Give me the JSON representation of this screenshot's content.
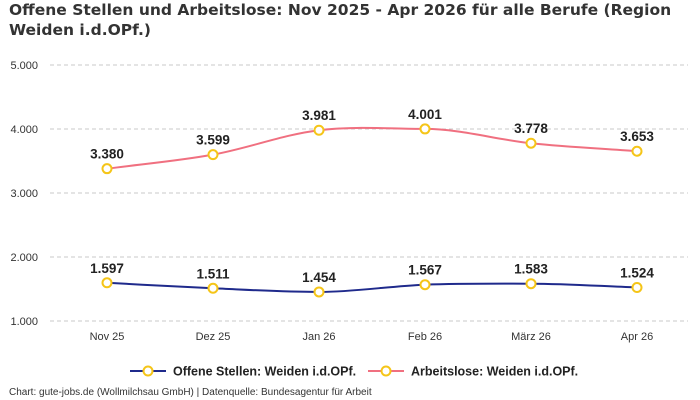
{
  "title": "Offene Stellen und Arbeitslose: Nov 2025 - Apr 2026 für alle Berufe (Region Weiden i.d.OPf.)",
  "footer": "Chart: gute-jobs.de (Wollmilchsau GmbH) | Datenquelle: Bundesagentur für Arbeit",
  "chart_data": {
    "type": "line",
    "title": "Offene Stellen und Arbeitslose: Nov 2025 - Apr 2026 für alle Berufe (Region Weiden i.d.OPf.)",
    "xlabel": "",
    "ylabel": "",
    "categories": [
      "Nov 25",
      "Dez 25",
      "Jan 26",
      "Feb 26",
      "März 26",
      "Apr 26"
    ],
    "ylim": [
      1000,
      5000
    ],
    "yticks": [
      1000,
      2000,
      3000,
      4000,
      5000
    ],
    "ytick_labels": [
      "1.000",
      "2.000",
      "3.000",
      "4.000",
      "5.000"
    ],
    "grid": true,
    "legend_position": "bottom",
    "series": [
      {
        "name": "Offene Stellen: Weiden i.d.OPf.",
        "color": "#1f2a8c",
        "values": [
          1597,
          1511,
          1454,
          1567,
          1583,
          1524
        ],
        "labels": [
          "1.597",
          "1.511",
          "1.454",
          "1.567",
          "1.583",
          "1.524"
        ]
      },
      {
        "name": "Arbeitslose: Weiden i.d.OPf.",
        "color": "#f07080",
        "values": [
          3380,
          3599,
          3981,
          4001,
          3778,
          3653
        ],
        "labels": [
          "3.380",
          "3.599",
          "3.981",
          "4.001",
          "3.778",
          "3.653"
        ]
      }
    ],
    "marker_color": "#f5c518"
  }
}
